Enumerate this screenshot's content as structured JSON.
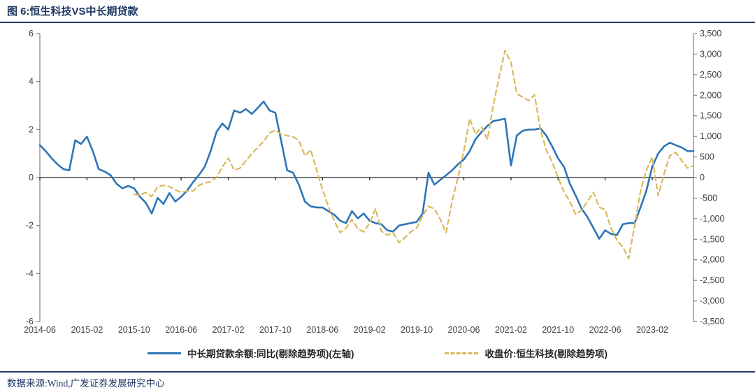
{
  "header": {
    "title": "图 6:恒生科技VS中长期贷款"
  },
  "footer": {
    "source": "数据来源:Wind,广发证券发展研究中心"
  },
  "legend": [
    {
      "label": "中长期贷款余额:同比(剔除趋势项)(左轴)"
    },
    {
      "label": "收盘价:恒生科技(剔除趋势项)"
    }
  ],
  "chart_data": {
    "type": "line",
    "title": "图 6:恒生科技VS中长期贷款",
    "grid": false,
    "legend_position": "bottom",
    "left_axis": {
      "min": -6,
      "max": 6,
      "ticks": [
        6,
        4,
        2,
        0,
        -2,
        -4,
        -6
      ]
    },
    "right_axis": {
      "min": -3500,
      "max": 3500,
      "ticks": [
        3500,
        3000,
        2500,
        2000,
        1500,
        1000,
        500,
        0,
        -500,
        -1000,
        -1500,
        -2000,
        -2500,
        -3000,
        -3500
      ]
    },
    "x_tick_labels": [
      "2014-06",
      "2015-02",
      "2015-10",
      "2016-06",
      "2017-02",
      "2017-10",
      "2018-06",
      "2019-02",
      "2019-10",
      "2020-06",
      "2021-02",
      "2021-10",
      "2022-06",
      "2023-02"
    ],
    "x_tick_indices": [
      0,
      8,
      16,
      24,
      32,
      40,
      48,
      56,
      64,
      72,
      80,
      88,
      96,
      104
    ],
    "x_months": [
      "2014-06",
      "2014-07",
      "2014-08",
      "2014-09",
      "2014-10",
      "2014-11",
      "2014-12",
      "2015-01",
      "2015-02",
      "2015-03",
      "2015-04",
      "2015-05",
      "2015-06",
      "2015-07",
      "2015-08",
      "2015-09",
      "2015-10",
      "2015-11",
      "2015-12",
      "2016-01",
      "2016-02",
      "2016-03",
      "2016-04",
      "2016-05",
      "2016-06",
      "2016-07",
      "2016-08",
      "2016-09",
      "2016-10",
      "2016-11",
      "2016-12",
      "2017-01",
      "2017-02",
      "2017-03",
      "2017-04",
      "2017-05",
      "2017-06",
      "2017-07",
      "2017-08",
      "2017-09",
      "2017-10",
      "2017-11",
      "2017-12",
      "2018-01",
      "2018-02",
      "2018-03",
      "2018-04",
      "2018-05",
      "2018-06",
      "2018-07",
      "2018-08",
      "2018-09",
      "2018-10",
      "2018-11",
      "2018-12",
      "2019-01",
      "2019-02",
      "2019-03",
      "2019-04",
      "2019-05",
      "2019-06",
      "2019-07",
      "2019-08",
      "2019-09",
      "2019-10",
      "2019-11",
      "2019-12",
      "2020-01",
      "2020-02",
      "2020-03",
      "2020-04",
      "2020-05",
      "2020-06",
      "2020-07",
      "2020-08",
      "2020-09",
      "2020-10",
      "2020-11",
      "2020-12",
      "2021-01",
      "2021-02",
      "2021-03",
      "2021-04",
      "2021-05",
      "2021-06",
      "2021-07",
      "2021-08",
      "2021-09",
      "2021-10",
      "2021-11",
      "2021-12",
      "2022-01",
      "2022-02",
      "2022-03",
      "2022-04",
      "2022-05",
      "2022-06",
      "2022-07",
      "2022-08",
      "2022-09",
      "2022-10",
      "2022-11",
      "2022-12",
      "2023-01",
      "2023-02",
      "2023-03",
      "2023-04",
      "2023-05",
      "2023-06",
      "2023-07",
      "2023-08",
      "2023-09"
    ],
    "series": [
      {
        "name": "中长期贷款余额:同比(剔除趋势项)(左轴)",
        "axis": "left",
        "color": "#2E75B6",
        "style": "solid",
        "values": [
          1.35,
          1.1,
          0.8,
          0.55,
          0.35,
          0.3,
          1.55,
          1.4,
          1.7,
          1.1,
          0.35,
          0.25,
          0.1,
          -0.25,
          -0.45,
          -0.35,
          -0.45,
          -0.8,
          -1.05,
          -1.5,
          -0.85,
          -1.1,
          -0.65,
          -1.0,
          -0.8,
          -0.55,
          -0.2,
          0.1,
          0.45,
          1.1,
          1.9,
          2.25,
          2.0,
          2.8,
          2.7,
          2.85,
          2.65,
          2.9,
          3.17,
          2.8,
          2.7,
          1.5,
          0.3,
          0.2,
          -0.3,
          -1.0,
          -1.2,
          -1.25,
          -1.25,
          -1.4,
          -1.55,
          -1.8,
          -1.9,
          -1.4,
          -1.7,
          -1.5,
          -1.8,
          -1.9,
          -1.95,
          -2.2,
          -2.25,
          -2.0,
          -1.95,
          -1.9,
          -1.85,
          -1.5,
          0.2,
          -0.3,
          -0.1,
          0.1,
          0.3,
          0.55,
          0.75,
          1.1,
          1.6,
          1.9,
          2.15,
          2.35,
          2.4,
          2.45,
          0.5,
          1.75,
          1.95,
          2.0,
          2.0,
          2.05,
          1.75,
          1.3,
          0.8,
          0.45,
          -0.25,
          -0.75,
          -1.3,
          -1.65,
          -2.1,
          -2.55,
          -2.2,
          -2.35,
          -2.4,
          -1.95,
          -1.9,
          -1.9,
          -1.25,
          -0.55,
          0.45,
          1.0,
          1.3,
          1.45,
          1.35,
          1.25,
          1.1,
          1.1
        ]
      },
      {
        "name": "收盘价:恒生科技(剔除趋势项)",
        "axis": "right",
        "color": "#D9B95C",
        "style": "dashed",
        "values": [
          null,
          null,
          null,
          null,
          null,
          null,
          null,
          null,
          null,
          null,
          null,
          null,
          null,
          null,
          null,
          null,
          -410,
          -430,
          -360,
          -460,
          -220,
          -190,
          -220,
          -300,
          -360,
          -330,
          -330,
          -190,
          -130,
          -100,
          0,
          260,
          470,
          180,
          230,
          410,
          580,
          730,
          880,
          1080,
          1150,
          1050,
          1020,
          990,
          900,
          530,
          670,
          180,
          -290,
          -700,
          -1050,
          -1340,
          -1230,
          -1020,
          -1250,
          -1320,
          -1110,
          -760,
          -1310,
          -1400,
          -1340,
          -1580,
          -1460,
          -1320,
          -1230,
          -930,
          -700,
          -760,
          -1020,
          -1340,
          -580,
          0,
          640,
          1430,
          1050,
          1230,
          930,
          1750,
          2450,
          3090,
          2800,
          2040,
          1950,
          1870,
          2010,
          1170,
          670,
          380,
          0,
          -350,
          -580,
          -900,
          -790,
          -580,
          -360,
          -720,
          -780,
          -1240,
          -1520,
          -1690,
          -1970,
          -1170,
          -330,
          180,
          500,
          -440,
          90,
          530,
          610,
          410,
          230,
          290
        ]
      }
    ]
  }
}
